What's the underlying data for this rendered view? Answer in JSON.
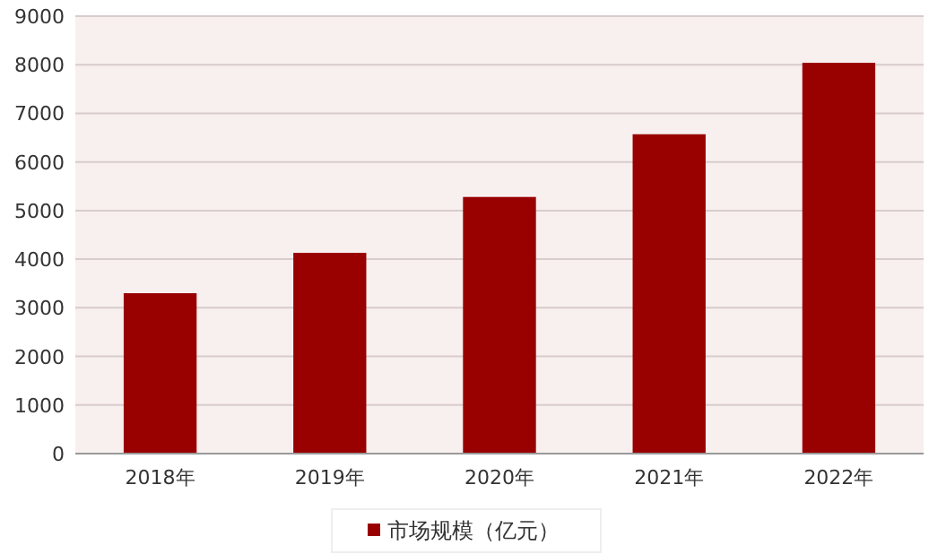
{
  "chart_data": {
    "type": "bar",
    "categories": [
      "2018年",
      "2019年",
      "2020年",
      "2021年",
      "2022年"
    ],
    "series": [
      {
        "name": "市场规模（亿元）",
        "color": "#990000",
        "values": [
          3300,
          4130,
          5280,
          6570,
          8040
        ]
      }
    ],
    "ylim": [
      0,
      9000
    ],
    "yticks": [
      0,
      1000,
      2000,
      3000,
      4000,
      5000,
      6000,
      7000,
      8000,
      9000
    ],
    "grid": "y",
    "legend": "bottom"
  }
}
